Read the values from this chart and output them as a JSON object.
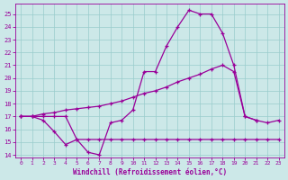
{
  "xlabel": "Windchill (Refroidissement éolien,°C)",
  "bg_color": "#cce8e8",
  "grid_color": "#99cccc",
  "line_color": "#990099",
  "xlim": [
    -0.5,
    23.5
  ],
  "ylim": [
    13.8,
    25.8
  ],
  "yticks": [
    14,
    15,
    16,
    17,
    18,
    19,
    20,
    21,
    22,
    23,
    24,
    25
  ],
  "xticks": [
    0,
    1,
    2,
    3,
    4,
    5,
    6,
    7,
    8,
    9,
    10,
    11,
    12,
    13,
    14,
    15,
    16,
    17,
    18,
    19,
    20,
    21,
    22,
    23
  ],
  "series1_x": [
    0,
    1,
    2,
    3,
    4,
    5,
    6,
    7,
    8,
    9,
    10,
    11,
    12,
    13,
    14,
    15,
    16,
    17,
    18,
    19,
    20,
    21
  ],
  "series1_y": [
    17.0,
    17.0,
    16.7,
    15.8,
    14.8,
    15.2,
    14.2,
    14.0,
    16.5,
    16.7,
    17.5,
    20.5,
    20.5,
    22.5,
    24.0,
    25.3,
    25.0,
    25.0,
    23.5,
    21.0,
    17.0,
    16.7
  ],
  "series2_x": [
    0,
    1,
    2,
    3,
    4,
    5,
    6,
    7,
    8,
    9,
    10,
    11,
    12,
    13,
    14,
    15,
    16,
    17,
    18,
    19,
    20,
    21,
    22,
    23
  ],
  "series2_y": [
    17.0,
    17.0,
    17.2,
    17.3,
    17.5,
    17.6,
    17.7,
    17.8,
    18.0,
    18.2,
    18.5,
    18.8,
    19.0,
    19.3,
    19.7,
    20.0,
    20.3,
    20.7,
    21.0,
    20.5,
    17.0,
    16.7,
    16.5,
    16.7
  ],
  "series3_x": [
    0,
    1,
    2,
    3,
    4,
    5,
    6,
    7,
    8,
    9,
    10,
    11,
    12,
    13,
    14,
    15,
    16,
    17,
    18,
    19,
    20,
    21,
    22,
    23
  ],
  "series3_y": [
    17.0,
    17.0,
    17.0,
    17.0,
    17.0,
    15.2,
    15.2,
    15.2,
    15.2,
    15.2,
    15.2,
    15.2,
    15.2,
    15.2,
    15.2,
    15.2,
    15.2,
    15.2,
    15.2,
    15.2,
    15.2,
    15.2,
    15.2,
    15.2
  ]
}
